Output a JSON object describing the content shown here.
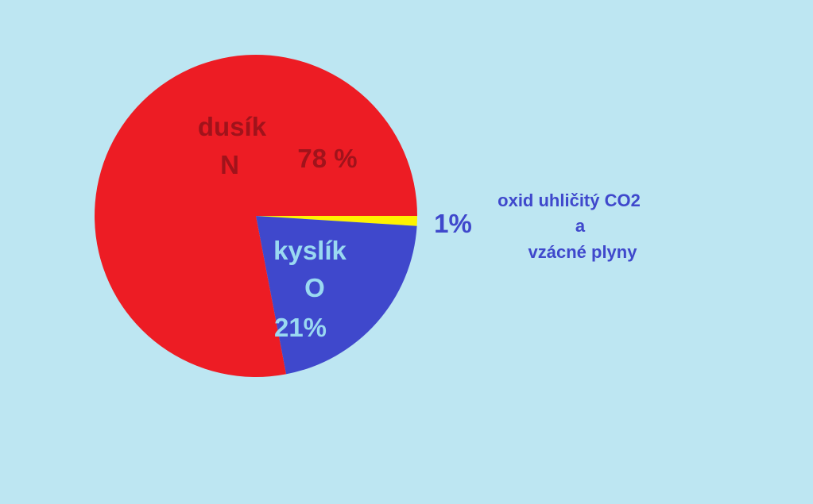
{
  "colors": {
    "background": "#bde6f2",
    "nitrogen": "#ed1c24",
    "oxygen": "#3f48cc",
    "other": "#fff200",
    "label_dark_red": "#a0131b",
    "label_light_blue": "#9ad9f1",
    "label_blue": "#3f48cc"
  },
  "chart_data": {
    "type": "pie",
    "slices": [
      {
        "key": "other",
        "value": 1,
        "color": "#fff200"
      },
      {
        "key": "oxygen",
        "value": 21,
        "color": "#3f48cc"
      },
      {
        "key": "nitrogen",
        "value": 78,
        "color": "#ed1c24"
      }
    ],
    "labels": {
      "nitrogen": {
        "name": "dusík",
        "symbol": "N",
        "percent": "78 %"
      },
      "oxygen": {
        "name": "kyslík",
        "symbol": "O",
        "percent": "21%"
      },
      "other": {
        "percent": "1%",
        "line1": "oxid uhličitý CO2",
        "line2": "a",
        "line3": "vzácné plyny"
      }
    }
  }
}
